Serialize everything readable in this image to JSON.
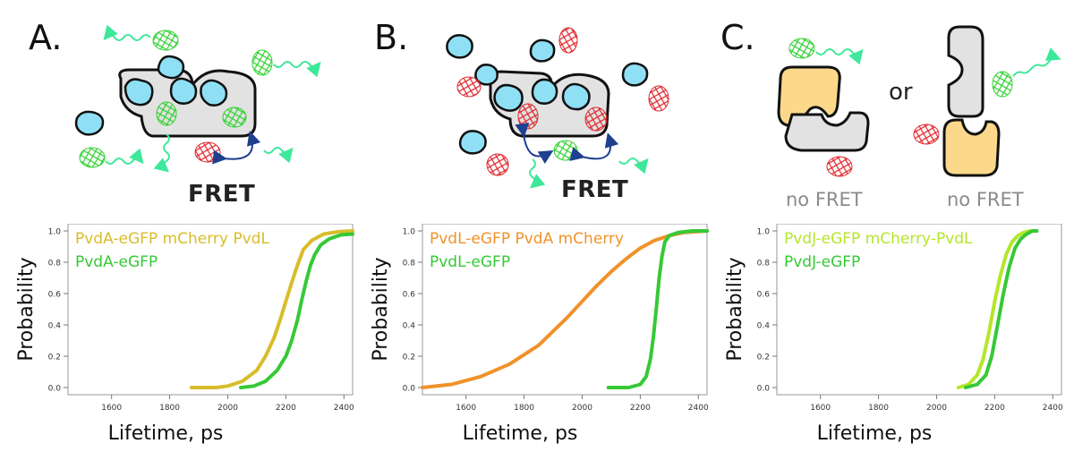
{
  "panels": [
    {
      "letter": "A.",
      "fret_label": "FRET"
    },
    {
      "letter": "B.",
      "fret_label": "FRET"
    },
    {
      "letter": "C.",
      "or_label": "or",
      "nofret_left": "no FRET",
      "nofret_right": "no FRET"
    }
  ],
  "colors": {
    "blob_blue": "#8fe0f5",
    "complex_gray": "#e2e2e2",
    "yellow_protein": "#fcd98a",
    "gfp_green": "#2fd12f",
    "cherry_red": "#e0262c",
    "wave_green": "#3ee89a",
    "arrow_blue": "#1f3f8f",
    "nofret_gray": "#8a8a8a"
  },
  "chart_data": [
    {
      "type": "line",
      "ylabel": "Probability",
      "xlabel": "Lifetime, ps",
      "xlim": [
        1450,
        2430
      ],
      "ylim": [
        0,
        1
      ],
      "xticks": [
        "1600",
        "1800",
        "2000",
        "2200",
        "2400"
      ],
      "yticks": [
        "0.0",
        "0.2",
        "0.4",
        "0.6",
        "0.8",
        "1.0"
      ],
      "series": [
        {
          "name": "PvdA-eGFP mCherry PvdL",
          "color": "#d8bd2a",
          "x": [
            1875,
            1960,
            2000,
            2050,
            2100,
            2130,
            2160,
            2180,
            2200,
            2220,
            2240,
            2260,
            2290,
            2330,
            2380,
            2430
          ],
          "y": [
            0.0,
            0.0,
            0.01,
            0.04,
            0.11,
            0.2,
            0.32,
            0.43,
            0.55,
            0.67,
            0.78,
            0.88,
            0.94,
            0.98,
            0.995,
            1.0
          ]
        },
        {
          "name": "PvdA-eGFP",
          "color": "#36c936",
          "x": [
            2045,
            2090,
            2130,
            2170,
            2200,
            2220,
            2240,
            2255,
            2270,
            2285,
            2300,
            2320,
            2350,
            2390,
            2430
          ],
          "y": [
            0.0,
            0.01,
            0.04,
            0.11,
            0.2,
            0.3,
            0.43,
            0.56,
            0.68,
            0.78,
            0.85,
            0.91,
            0.95,
            0.975,
            0.98
          ]
        }
      ]
    },
    {
      "type": "line",
      "ylabel": "Probability",
      "xlabel": "Lifetime, ps",
      "xlim": [
        1450,
        2430
      ],
      "ylim": [
        0,
        1
      ],
      "xticks": [
        "1600",
        "1800",
        "2000",
        "2200",
        "2400"
      ],
      "yticks": [
        "0.0",
        "0.2",
        "0.4",
        "0.6",
        "0.8",
        "1.0"
      ],
      "series": [
        {
          "name": "PvdL-eGFP PvdA mCherry",
          "color": "#f0922a",
          "x": [
            1450,
            1550,
            1650,
            1750,
            1850,
            1950,
            2000,
            2050,
            2100,
            2150,
            2200,
            2250,
            2300,
            2350,
            2430
          ],
          "y": [
            0.0,
            0.02,
            0.07,
            0.15,
            0.27,
            0.45,
            0.55,
            0.65,
            0.74,
            0.82,
            0.89,
            0.94,
            0.97,
            0.99,
            1.0
          ]
        },
        {
          "name": "PvdL-eGFP",
          "color": "#36c936",
          "x": [
            2090,
            2160,
            2200,
            2220,
            2235,
            2245,
            2255,
            2265,
            2275,
            2285,
            2300,
            2330,
            2380,
            2430
          ],
          "y": [
            0.0,
            0.0,
            0.02,
            0.07,
            0.18,
            0.32,
            0.5,
            0.7,
            0.84,
            0.93,
            0.97,
            0.99,
            1.0,
            1.0
          ]
        }
      ]
    },
    {
      "type": "line",
      "ylabel": "Probability",
      "xlabel": "Lifetime, ps",
      "xlim": [
        1450,
        2430
      ],
      "ylim": [
        0,
        1
      ],
      "xticks": [
        "1600",
        "1800",
        "2000",
        "2200",
        "2400"
      ],
      "yticks": [
        "0.0",
        "0.2",
        "0.4",
        "0.6",
        "0.8",
        "1.0"
      ],
      "series": [
        {
          "name": "PvdJ-eGFP mCherry-PvdL",
          "color": "#b4e62a",
          "x": [
            2075,
            2110,
            2140,
            2160,
            2180,
            2200,
            2220,
            2240,
            2260,
            2280,
            2300,
            2320,
            2345
          ],
          "y": [
            0.0,
            0.02,
            0.08,
            0.18,
            0.35,
            0.55,
            0.72,
            0.85,
            0.93,
            0.97,
            0.99,
            1.0,
            1.0
          ]
        },
        {
          "name": "PvdJ-eGFP",
          "color": "#36c936",
          "x": [
            2100,
            2140,
            2170,
            2190,
            2210,
            2230,
            2250,
            2270,
            2290,
            2310,
            2330,
            2345
          ],
          "y": [
            0.0,
            0.02,
            0.08,
            0.2,
            0.4,
            0.6,
            0.77,
            0.89,
            0.95,
            0.98,
            1.0,
            1.0
          ]
        }
      ]
    }
  ]
}
